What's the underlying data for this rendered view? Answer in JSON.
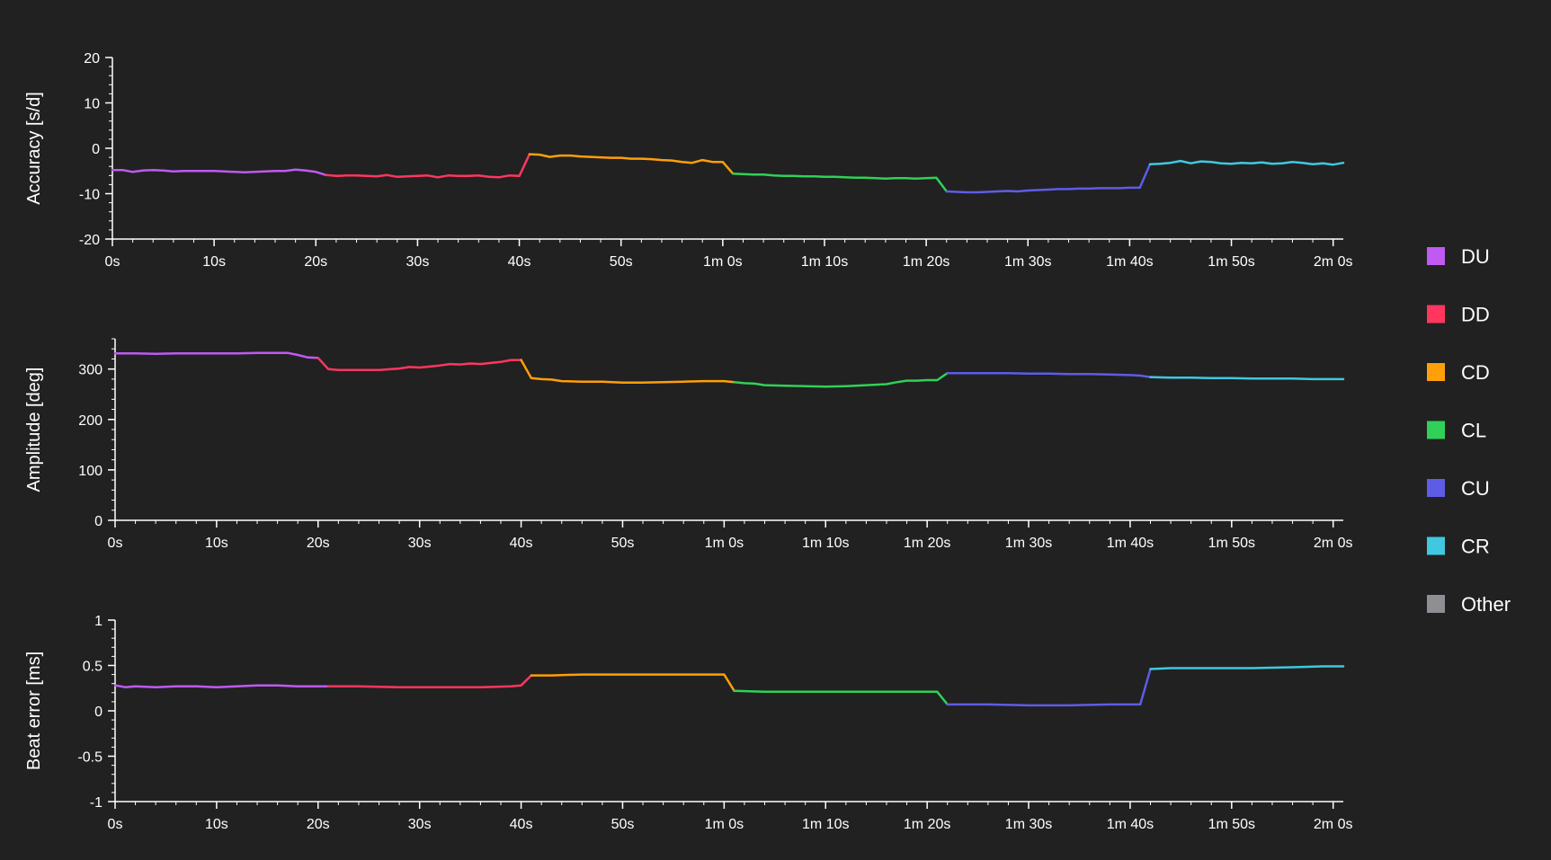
{
  "legend": [
    {
      "label": "DU",
      "color": "#bf5af2"
    },
    {
      "label": "DD",
      "color": "#ff375f"
    },
    {
      "label": "CD",
      "color": "#ff9f0a"
    },
    {
      "label": "CL",
      "color": "#30d158"
    },
    {
      "label": "CU",
      "color": "#5e5ce6"
    },
    {
      "label": "CR",
      "color": "#40c8e0"
    },
    {
      "label": "Other",
      "color": "#8e8e93"
    }
  ],
  "chart_data": [
    {
      "type": "line",
      "ylabel": "Accuracy [s/d]",
      "xlabel": "",
      "ylim": [
        -20,
        20
      ],
      "yticks": [
        -20,
        -10,
        0,
        10,
        20
      ],
      "xlim": [
        0,
        121
      ],
      "xticks": [
        0,
        10,
        20,
        30,
        40,
        50,
        60,
        70,
        80,
        90,
        100,
        110,
        120
      ],
      "xtick_labels": [
        "0s",
        "10s",
        "20s",
        "30s",
        "40s",
        "50s",
        "1m 0s",
        "1m 10s",
        "1m 20s",
        "1m 30s",
        "1m 40s",
        "1m 50s",
        "2m 0s"
      ],
      "grid": false,
      "series": [
        {
          "color": "#bf5af2",
          "x": [
            0,
            1,
            2,
            3,
            4,
            5,
            6,
            7,
            8,
            9,
            10,
            11,
            12,
            13,
            14,
            15,
            16,
            17,
            18,
            19,
            20,
            21
          ],
          "y": [
            -4.8,
            -4.8,
            -5.2,
            -4.9,
            -4.8,
            -4.9,
            -5.1,
            -5.0,
            -5.0,
            -5.0,
            -5.0,
            -5.1,
            -5.2,
            -5.3,
            -5.2,
            -5.1,
            -5.0,
            -5.0,
            -4.7,
            -4.9,
            -5.2,
            -5.9
          ]
        },
        {
          "color": "#ff375f",
          "x": [
            21,
            22,
            23,
            24,
            25,
            26,
            27,
            28,
            29,
            30,
            31,
            32,
            33,
            34,
            35,
            36,
            37,
            38,
            39,
            40,
            41
          ],
          "y": [
            -5.9,
            -6.1,
            -6.0,
            -6.0,
            -6.1,
            -6.2,
            -5.9,
            -6.3,
            -6.2,
            -6.1,
            -6.0,
            -6.4,
            -6.0,
            -6.1,
            -6.1,
            -6.0,
            -6.3,
            -6.4,
            -6.0,
            -6.1,
            -1.3
          ]
        },
        {
          "color": "#ff9f0a",
          "x": [
            41,
            42,
            43,
            44,
            45,
            46,
            47,
            48,
            49,
            50,
            51,
            52,
            53,
            54,
            55,
            56,
            57,
            58,
            59,
            60,
            61
          ],
          "y": [
            -1.3,
            -1.4,
            -1.9,
            -1.6,
            -1.6,
            -1.8,
            -1.9,
            -2.0,
            -2.1,
            -2.1,
            -2.3,
            -2.3,
            -2.4,
            -2.6,
            -2.7,
            -3.0,
            -3.2,
            -2.6,
            -3.0,
            -3.0,
            -5.6
          ]
        },
        {
          "color": "#30d158",
          "x": [
            61,
            62,
            63,
            64,
            65,
            66,
            67,
            68,
            69,
            70,
            71,
            72,
            73,
            74,
            75,
            76,
            77,
            78,
            79,
            80,
            81,
            82
          ],
          "y": [
            -5.6,
            -5.7,
            -5.8,
            -5.8,
            -6.0,
            -6.1,
            -6.1,
            -6.2,
            -6.2,
            -6.3,
            -6.3,
            -6.4,
            -6.5,
            -6.5,
            -6.6,
            -6.7,
            -6.6,
            -6.6,
            -6.7,
            -6.6,
            -6.5,
            -9.5
          ]
        },
        {
          "color": "#5e5ce6",
          "x": [
            82,
            83,
            84,
            85,
            86,
            87,
            88,
            89,
            90,
            91,
            92,
            93,
            94,
            95,
            96,
            97,
            98,
            99,
            100,
            101,
            102
          ],
          "y": [
            -9.5,
            -9.6,
            -9.7,
            -9.7,
            -9.6,
            -9.5,
            -9.4,
            -9.5,
            -9.3,
            -9.2,
            -9.1,
            -9.0,
            -9.0,
            -8.9,
            -8.9,
            -8.8,
            -8.8,
            -8.8,
            -8.7,
            -8.7,
            -3.5
          ]
        },
        {
          "color": "#40c8e0",
          "x": [
            102,
            103,
            104,
            105,
            106,
            107,
            108,
            109,
            110,
            111,
            112,
            113,
            114,
            115,
            116,
            117,
            118,
            119,
            120,
            121
          ],
          "y": [
            -3.5,
            -3.4,
            -3.2,
            -2.8,
            -3.3,
            -2.9,
            -3.0,
            -3.3,
            -3.4,
            -3.2,
            -3.3,
            -3.1,
            -3.4,
            -3.3,
            -3.0,
            -3.2,
            -3.5,
            -3.3,
            -3.6,
            -3.2
          ]
        }
      ]
    },
    {
      "type": "line",
      "ylabel": "Amplitude [deg]",
      "xlabel": "",
      "ylim": [
        0,
        360
      ],
      "yticks": [
        0,
        100,
        200,
        300
      ],
      "xlim": [
        0,
        121
      ],
      "xticks": [
        0,
        10,
        20,
        30,
        40,
        50,
        60,
        70,
        80,
        90,
        100,
        110,
        120
      ],
      "xtick_labels": [
        "0s",
        "10s",
        "20s",
        "30s",
        "40s",
        "50s",
        "1m 0s",
        "1m 10s",
        "1m 20s",
        "1m 30s",
        "1m 40s",
        "1m 50s",
        "2m 0s"
      ],
      "grid": false,
      "series": [
        {
          "color": "#bf5af2",
          "x": [
            0,
            2,
            4,
            6,
            8,
            10,
            12,
            14,
            16,
            17,
            18,
            19,
            20
          ],
          "y": [
            331,
            331,
            330,
            331,
            331,
            331,
            331,
            332,
            332,
            332,
            328,
            323,
            322
          ]
        },
        {
          "color": "#ff375f",
          "x": [
            20,
            21,
            22,
            24,
            26,
            28,
            29,
            30,
            31,
            32,
            33,
            34,
            35,
            36,
            37,
            38,
            39,
            40
          ],
          "y": [
            322,
            300,
            298,
            298,
            298,
            301,
            304,
            303,
            305,
            307,
            310,
            309,
            311,
            310,
            312,
            314,
            318,
            318
          ]
        },
        {
          "color": "#ff9f0a",
          "x": [
            40,
            41,
            42,
            43,
            44,
            46,
            48,
            50,
            52,
            54,
            56,
            58,
            60,
            61
          ],
          "y": [
            318,
            282,
            280,
            279,
            276,
            275,
            275,
            273,
            273,
            274,
            275,
            276,
            276,
            274
          ]
        },
        {
          "color": "#30d158",
          "x": [
            61,
            62,
            63,
            64,
            66,
            68,
            70,
            72,
            74,
            76,
            77,
            78,
            79,
            80,
            81,
            82
          ],
          "y": [
            274,
            272,
            271,
            268,
            267,
            266,
            265,
            266,
            268,
            270,
            274,
            277,
            277,
            278,
            278,
            292
          ]
        },
        {
          "color": "#5e5ce6",
          "x": [
            82,
            84,
            86,
            88,
            90,
            92,
            94,
            96,
            98,
            100,
            101,
            102
          ],
          "y": [
            292,
            292,
            292,
            292,
            291,
            291,
            290,
            290,
            289,
            288,
            287,
            284
          ]
        },
        {
          "color": "#40c8e0",
          "x": [
            102,
            104,
            106,
            108,
            110,
            112,
            114,
            116,
            118,
            120,
            121
          ],
          "y": [
            284,
            283,
            283,
            282,
            282,
            281,
            281,
            281,
            280,
            280,
            280
          ]
        }
      ]
    },
    {
      "type": "line",
      "ylabel": "Beat error [ms]",
      "xlabel": "",
      "ylim": [
        -1,
        1
      ],
      "yticks": [
        -1,
        -0.5,
        0,
        0.5,
        1
      ],
      "xlim": [
        0,
        121
      ],
      "xticks": [
        0,
        10,
        20,
        30,
        40,
        50,
        60,
        70,
        80,
        90,
        100,
        110,
        120
      ],
      "xtick_labels": [
        "0s",
        "10s",
        "20s",
        "30s",
        "40s",
        "50s",
        "1m 0s",
        "1m 10s",
        "1m 20s",
        "1m 30s",
        "1m 40s",
        "1m 50s",
        "2m 0s"
      ],
      "grid": false,
      "series": [
        {
          "color": "#bf5af2",
          "x": [
            0,
            1,
            2,
            4,
            6,
            8,
            10,
            12,
            14,
            16,
            18,
            20,
            21
          ],
          "y": [
            0.28,
            0.26,
            0.27,
            0.26,
            0.27,
            0.27,
            0.26,
            0.27,
            0.28,
            0.28,
            0.27,
            0.27,
            0.27
          ]
        },
        {
          "color": "#ff375f",
          "x": [
            21,
            24,
            28,
            32,
            36,
            39,
            40,
            41
          ],
          "y": [
            0.27,
            0.27,
            0.26,
            0.26,
            0.26,
            0.27,
            0.28,
            0.39
          ]
        },
        {
          "color": "#ff9f0a",
          "x": [
            41,
            43,
            46,
            50,
            54,
            58,
            60,
            61
          ],
          "y": [
            0.39,
            0.39,
            0.4,
            0.4,
            0.4,
            0.4,
            0.4,
            0.22
          ]
        },
        {
          "color": "#30d158",
          "x": [
            61,
            64,
            68,
            72,
            76,
            80,
            81,
            82
          ],
          "y": [
            0.22,
            0.21,
            0.21,
            0.21,
            0.21,
            0.21,
            0.21,
            0.07
          ]
        },
        {
          "color": "#5e5ce6",
          "x": [
            82,
            86,
            90,
            94,
            98,
            101,
            102
          ],
          "y": [
            0.07,
            0.07,
            0.06,
            0.06,
            0.07,
            0.07,
            0.46
          ]
        },
        {
          "color": "#40c8e0",
          "x": [
            102,
            104,
            108,
            112,
            116,
            119,
            120,
            121
          ],
          "y": [
            0.46,
            0.47,
            0.47,
            0.47,
            0.48,
            0.49,
            0.49,
            0.49
          ]
        }
      ]
    }
  ]
}
